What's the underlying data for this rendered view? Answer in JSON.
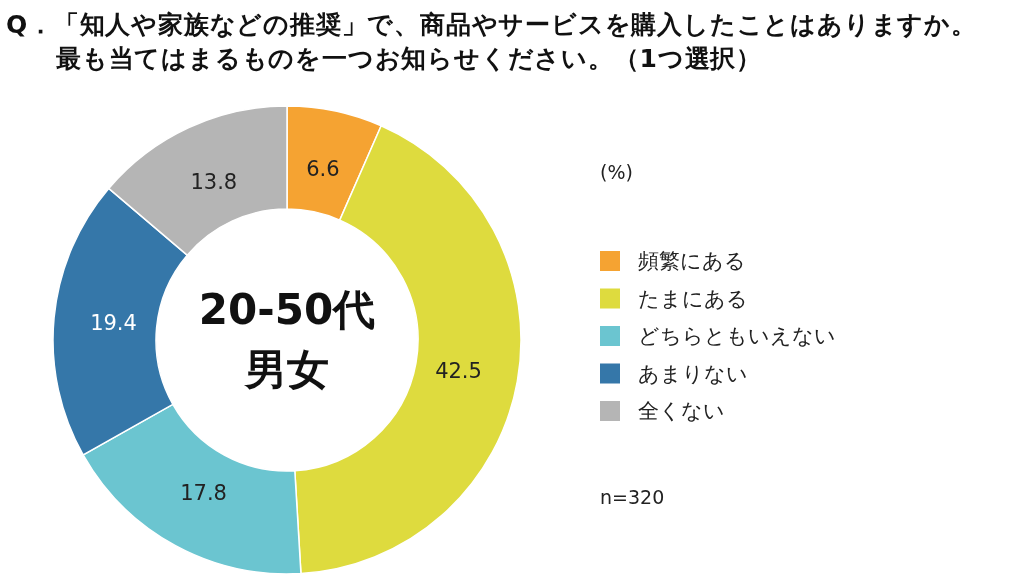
{
  "chart_data": {
    "type": "donut",
    "title": "Q．「知人や家族などの推奨」で、商品やサービスを購入したことはありますか。最も当てはまるものを一つお知らせください。（1つ選択）",
    "categories": [
      "頻繁にある",
      "たまにある",
      "どちらともいえない",
      "あまりない",
      "全くない"
    ],
    "values": [
      6.6,
      42.5,
      17.8,
      19.4,
      13.8
    ],
    "colors": [
      "#f5a332",
      "#dedb3e",
      "#6bc5d0",
      "#3577a9",
      "#b5b5b5"
    ],
    "data_labels": true,
    "legend": "right",
    "annotations": [
      "20-50代男女",
      "(%)",
      "n=320"
    ]
  }
}
